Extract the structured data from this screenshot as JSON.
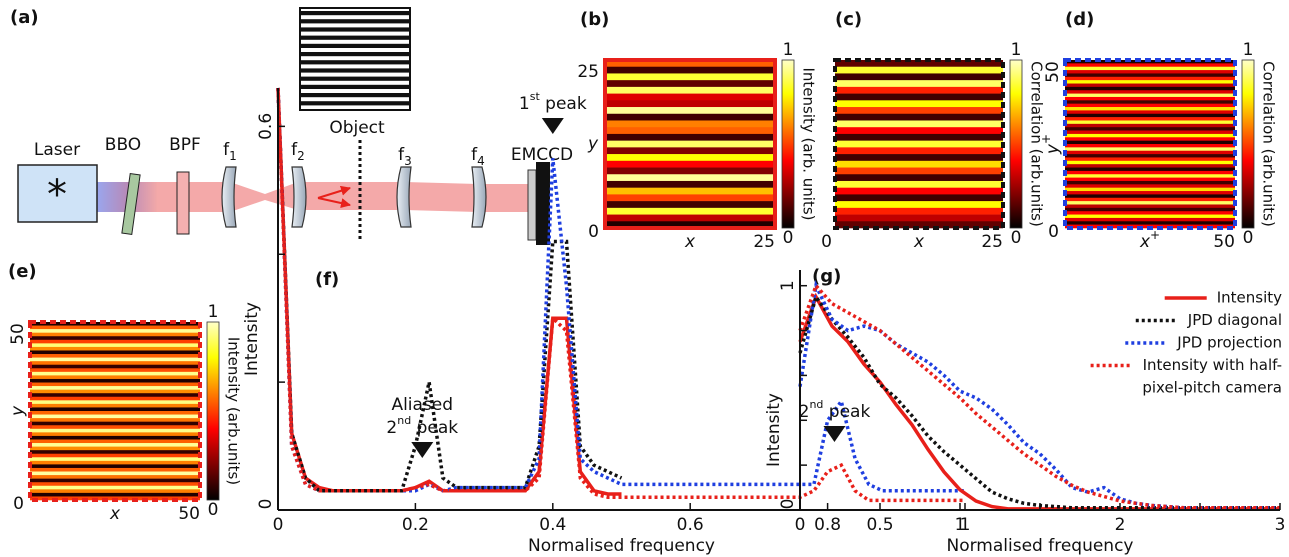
{
  "setup": {
    "label": "(a)",
    "laser": "Laser",
    "bbo": "BBO",
    "bpf": "BPF",
    "lenses": [
      {
        "name": "f",
        "sub": "1"
      },
      {
        "name": "f",
        "sub": "2"
      },
      {
        "name": "f",
        "sub": "3"
      },
      {
        "name": "f",
        "sub": "4"
      }
    ],
    "object": "Object",
    "camera": "EMCCD"
  },
  "chart_data": [
    {
      "type": "heatmap",
      "label": "(b)",
      "rows": [
        0.55,
        0.1,
        0.85,
        0.15,
        0.9,
        0.35,
        0.3,
        0.95,
        0.1,
        0.6,
        0.55,
        0.1,
        0.9,
        0.2,
        0.8,
        0.4,
        0.2,
        0.95,
        0.1,
        0.7,
        0.5,
        0.1,
        0.85,
        0.3,
        0.05
      ],
      "xlim": [
        0,
        25
      ],
      "ylim": [
        0,
        25
      ],
      "xticks": [
        25
      ],
      "yticks": [
        0,
        25
      ],
      "xlabel": [
        "x"
      ],
      "ylabel": [
        "y"
      ],
      "rotate_yticks": false,
      "colorbar": {
        "label": "Intensity (arb. units)",
        "lim": [
          0,
          1
        ],
        "ticks": [
          0,
          1
        ]
      },
      "border": {
        "color": "#e8201a",
        "style": "solid"
      }
    },
    {
      "type": "heatmap",
      "label": "(c)",
      "rows": [
        0.15,
        0.85,
        0.1,
        0.9,
        0.45,
        0.1,
        0.8,
        0.5,
        0.1,
        0.9,
        0.4,
        0.1,
        0.85,
        0.45,
        0.1,
        0.75,
        0.5,
        0.1,
        0.85,
        0.4,
        0.1,
        0.8,
        0.45,
        0.3,
        0.15
      ],
      "xlim": [
        0,
        25
      ],
      "ylim": [
        0,
        25
      ],
      "xticks": [
        0,
        25
      ],
      "yticks": [],
      "xlabel": [
        "x"
      ],
      "ylabel": null,
      "rotate_yticks": false,
      "colorbar": {
        "label": "Correlation (arb.units)",
        "lim": [
          0,
          1
        ],
        "ticks": [
          0,
          1
        ]
      },
      "border": {
        "color": "#111111",
        "style": "dashed"
      }
    },
    {
      "type": "heatmap",
      "label": "(d)",
      "rows": [
        0.05,
        0.4,
        0.85,
        0.35,
        0.1,
        0.45,
        0.8,
        0.3,
        0.05,
        0.35,
        0.9,
        0.4,
        0.1,
        0.4,
        0.75,
        0.35,
        0.05,
        0.45,
        0.85,
        0.3,
        0.1,
        0.35,
        0.8,
        0.4,
        0.05,
        0.4,
        0.9,
        0.35,
        0.1,
        0.45,
        0.8,
        0.3,
        0.05,
        0.4,
        0.85,
        0.4,
        0.1,
        0.35,
        0.75,
        0.35,
        0.05,
        0.45,
        0.9,
        0.3,
        0.1,
        0.4,
        0.8,
        0.35,
        0.05,
        0.4
      ],
      "xlim": [
        0,
        50
      ],
      "ylim": [
        0,
        50
      ],
      "xticks": [
        50
      ],
      "yticks": [
        0,
        50
      ],
      "xlabel": [
        "x",
        "+"
      ],
      "ylabel": [
        "y",
        "+"
      ],
      "rotate_yticks": true,
      "colorbar": {
        "label": "Correlation (arb.units)",
        "lim": [
          0,
          1
        ],
        "ticks": [
          0,
          1
        ]
      },
      "border": {
        "color": "#1f3fe0",
        "style": "dashed"
      }
    },
    {
      "type": "heatmap",
      "label": "(e)",
      "rows": [
        0.05,
        0.55,
        0.95,
        0.6,
        0.08,
        0.5,
        0.92,
        0.62,
        0.05,
        0.55,
        0.96,
        0.58,
        0.08,
        0.52,
        0.94,
        0.6,
        0.05,
        0.55,
        0.95,
        0.62,
        0.08,
        0.5,
        0.93,
        0.6,
        0.05,
        0.56,
        0.96,
        0.58,
        0.08,
        0.52,
        0.94,
        0.6,
        0.05,
        0.55,
        0.95,
        0.62,
        0.08,
        0.5,
        0.93,
        0.6,
        0.05,
        0.55,
        0.96,
        0.58,
        0.08,
        0.52,
        0.94,
        0.6,
        0.05,
        0.5
      ],
      "xlim": [
        0,
        50
      ],
      "ylim": [
        0,
        50
      ],
      "xticks": [
        50
      ],
      "yticks": [
        0,
        50
      ],
      "xlabel": [
        "x"
      ],
      "ylabel": [
        "y"
      ],
      "rotate_yticks": true,
      "colorbar": {
        "label": "Intensity (arb.units)",
        "lim": [
          0,
          1
        ],
        "ticks": [
          0,
          1
        ]
      },
      "border": {
        "color": "#e8201a",
        "style": "dashed"
      }
    },
    {
      "type": "line",
      "label": "(f)",
      "xlabel": "Normalised frequency",
      "ylabel": "Intensity",
      "xlim": [
        0,
        1
      ],
      "ylim": [
        0,
        0.66
      ],
      "xticks": [
        0,
        0.2,
        0.4,
        0.6,
        0.8,
        1
      ],
      "yticks": [
        0,
        0.6
      ],
      "yminorticks": [
        0.2,
        0.4
      ],
      "xminorticks": [],
      "x": [
        0,
        0.02,
        0.04,
        0.06,
        0.08,
        0.1,
        0.12,
        0.14,
        0.16,
        0.18,
        0.2,
        0.22,
        0.24,
        0.26,
        0.28,
        0.3,
        0.32,
        0.34,
        0.36,
        0.38,
        0.4,
        0.42,
        0.44,
        0.46,
        0.48,
        0.5,
        0.52,
        0.54,
        0.56,
        0.58,
        0.6,
        0.62,
        0.64,
        0.66,
        0.68,
        0.7,
        0.72,
        0.74,
        0.76,
        0.78,
        0.8,
        0.82,
        0.84,
        0.86,
        0.88,
        0.9,
        0.92,
        0.94,
        0.96,
        0.98,
        1
      ],
      "series": [
        {
          "color": "#e8201a",
          "style": "solid",
          "values": [
            0.66,
            0.12,
            0.05,
            0.035,
            0.03,
            0.03,
            0.03,
            0.03,
            0.03,
            0.03,
            0.035,
            0.045,
            0.03,
            0.03,
            0.03,
            0.03,
            0.03,
            0.03,
            0.03,
            0.06,
            0.3,
            0.3,
            0.06,
            0.03,
            0.025,
            0.025,
            null,
            null,
            null,
            null,
            null,
            null,
            null,
            null,
            null,
            null,
            null,
            null,
            null,
            null,
            null,
            null,
            null,
            null,
            null,
            null,
            null,
            null,
            null,
            null,
            null
          ]
        },
        {
          "color": "#111111",
          "style": "dotted",
          "values": [
            0.66,
            0.12,
            0.05,
            0.03,
            0.03,
            0.03,
            0.03,
            0.03,
            0.03,
            0.03,
            0.1,
            0.2,
            0.05,
            0.035,
            0.035,
            0.035,
            0.035,
            0.035,
            0.035,
            0.1,
            0.42,
            0.42,
            0.1,
            0.07,
            0.06,
            0.05,
            null,
            null,
            null,
            null,
            null,
            null,
            null,
            null,
            null,
            null,
            null,
            null,
            null,
            null,
            null,
            null,
            null,
            null,
            null,
            null,
            null,
            null,
            null,
            null,
            null
          ]
        },
        {
          "color": "#1f3fe0",
          "style": "dotted",
          "values": [
            0.66,
            0.1,
            0.04,
            0.03,
            0.03,
            0.03,
            0.03,
            0.03,
            0.03,
            0.03,
            0.03,
            0.04,
            0.03,
            0.035,
            0.035,
            0.035,
            0.035,
            0.035,
            0.035,
            0.08,
            0.55,
            0.35,
            0.08,
            0.06,
            0.05,
            0.04,
            0.04,
            0.04,
            0.04,
            0.04,
            0.04,
            0.04,
            0.04,
            0.04,
            0.04,
            0.04,
            0.04,
            0.04,
            0.04,
            0.04,
            0.14,
            0.17,
            0.08,
            0.04,
            0.03,
            0.03,
            0.03,
            0.03,
            0.03,
            0.03,
            0.03
          ]
        },
        {
          "color": "#e8201a",
          "style": "dotted",
          "values": [
            0.66,
            0.1,
            0.04,
            0.03,
            0.03,
            0.03,
            0.03,
            0.03,
            0.03,
            0.03,
            0.035,
            0.04,
            0.03,
            0.03,
            0.03,
            0.03,
            0.03,
            0.03,
            0.03,
            0.05,
            0.3,
            0.28,
            0.05,
            0.025,
            0.02,
            0.02,
            0.02,
            0.02,
            0.02,
            0.02,
            0.02,
            0.02,
            0.02,
            0.02,
            0.02,
            0.02,
            0.02,
            0.02,
            0.02,
            0.03,
            0.06,
            0.07,
            0.03,
            0.015,
            0.015,
            0.015,
            0.015,
            0.015,
            0.015,
            0.015,
            0.015
          ]
        }
      ],
      "annotations": [
        {
          "x": 0.21,
          "lines": [
            [
              "Aliased"
            ],
            [
              "2",
              "nd",
              " peak"
            ]
          ]
        },
        {
          "x": 0.4,
          "lines": [
            [
              "1",
              "st",
              " peak"
            ]
          ]
        },
        {
          "x": 0.81,
          "lines": [
            [
              "2",
              "nd",
              " peak"
            ]
          ]
        }
      ]
    },
    {
      "type": "line",
      "label": "(g)",
      "xlabel": "Normalised frequency",
      "ylabel": "Intensity",
      "xlim": [
        0,
        3
      ],
      "ylim": [
        0,
        1.07
      ],
      "xticks": [
        0,
        0.5,
        1,
        2,
        3
      ],
      "xminorticks": [
        1.5,
        2.5
      ],
      "yticks": [
        0,
        1
      ],
      "yminorticks": [
        0.2,
        0.4,
        0.6,
        0.8
      ],
      "legend": "upper right",
      "x": [
        0,
        0.1,
        0.2,
        0.3,
        0.4,
        0.5,
        0.6,
        0.7,
        0.8,
        0.9,
        1,
        1.1,
        1.2,
        1.3,
        1.4,
        1.5,
        1.6,
        1.7,
        1.8,
        1.9,
        2,
        2.1,
        2.2,
        2.3,
        2.4,
        2.5,
        2.6,
        2.7,
        2.8,
        2.9,
        3
      ],
      "series": [
        {
          "name": "Intensity",
          "color": "#e8201a",
          "style": "solid",
          "values": [
            0.75,
            0.95,
            0.82,
            0.75,
            0.65,
            0.57,
            0.47,
            0.38,
            0.27,
            0.17,
            0.09,
            0.04,
            0.015,
            0.005,
            0.005,
            0.005,
            0.005,
            0.005,
            0.005,
            0.005,
            0.005,
            0.005,
            0.005,
            0.005,
            0.005,
            0.005,
            0.005,
            0.005,
            0.005,
            0.005,
            0.005
          ]
        },
        {
          "name": "JPD diagonal",
          "color": "#111111",
          "style": "dotted",
          "values": [
            0.7,
            0.95,
            0.85,
            0.77,
            0.68,
            0.56,
            0.5,
            0.42,
            0.33,
            0.26,
            0.2,
            0.14,
            0.08,
            0.05,
            0.03,
            0.02,
            0.015,
            0.01,
            0.01,
            0.01,
            0.01,
            0.01,
            0.01,
            0.01,
            0.01,
            0.01,
            0.01,
            0.01,
            0.01,
            0.01,
            0.01
          ]
        },
        {
          "name": "JPD projection",
          "color": "#1f3fe0",
          "style": "dotted",
          "values": [
            0.55,
            1,
            0.85,
            0.8,
            0.82,
            0.8,
            0.74,
            0.7,
            0.66,
            0.6,
            0.53,
            0.5,
            0.45,
            0.38,
            0.3,
            0.25,
            0.18,
            0.1,
            0.08,
            0.1,
            0.05,
            0.03,
            0.02,
            0.015,
            0.01,
            0.01,
            0.01,
            0.01,
            0.01,
            0.01,
            0.01
          ]
        },
        {
          "name": [
            "Intensity with half-",
            "pixel-pitch camera"
          ],
          "color": "#e8201a",
          "style": "dotted",
          "values": [
            0.8,
            1,
            0.92,
            0.88,
            0.84,
            0.8,
            0.74,
            0.68,
            0.62,
            0.56,
            0.5,
            0.43,
            0.37,
            0.31,
            0.25,
            0.2,
            0.15,
            0.11,
            0.08,
            0.06,
            0.04,
            0.03,
            0.02,
            0.015,
            0.01,
            0.01,
            0.01,
            0.01,
            0.01,
            0.01,
            0.01
          ]
        }
      ]
    }
  ]
}
